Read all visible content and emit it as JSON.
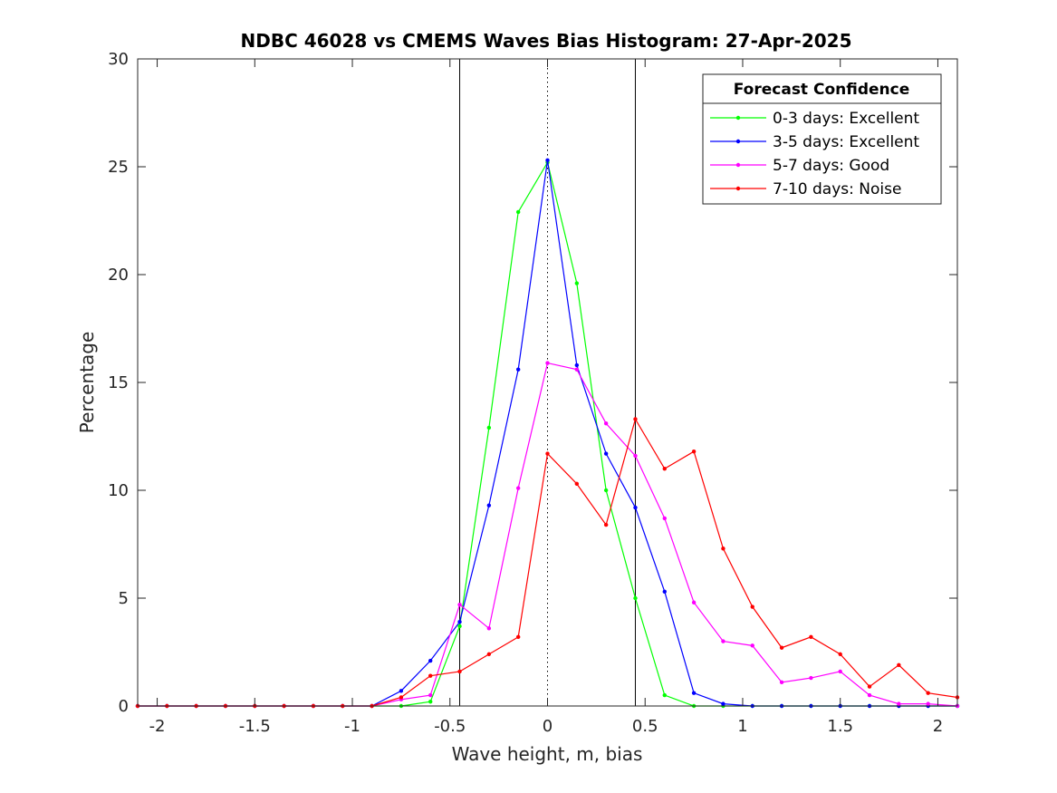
{
  "chart_data": {
    "type": "line",
    "title": "NDBC 46028 vs CMEMS Waves Bias Histogram: 27-Apr-2025",
    "xlabel": "Wave height, m, bias",
    "ylabel": "Percentage",
    "xlim": [
      -2.1,
      2.1
    ],
    "ylim": [
      0,
      30
    ],
    "xticks": [
      -2,
      -1.5,
      -1,
      -0.5,
      0,
      0.5,
      1,
      1.5,
      2
    ],
    "xtick_labels": [
      "-2",
      "-1.5",
      "-1",
      "-0.5",
      "0",
      "0.5",
      "1",
      "1.5",
      "2"
    ],
    "yticks": [
      0,
      5,
      10,
      15,
      20,
      25,
      30
    ],
    "ytick_labels": [
      "0",
      "5",
      "10",
      "15",
      "20",
      "25",
      "30"
    ],
    "grid": false,
    "legend": {
      "title": "Forecast Confidence",
      "placement": "top-right"
    },
    "vertical_lines": [
      {
        "x": -0.45,
        "style": "solid"
      },
      {
        "x": 0,
        "style": "dotted"
      },
      {
        "x": 0.45,
        "style": "solid"
      }
    ],
    "x": [
      -2.1,
      -1.95,
      -1.8,
      -1.65,
      -1.5,
      -1.35,
      -1.2,
      -1.05,
      -0.9,
      -0.75,
      -0.6,
      -0.45,
      -0.3,
      -0.15,
      0,
      0.15,
      0.3,
      0.45,
      0.6,
      0.75,
      0.9,
      1.05,
      1.2,
      1.35,
      1.5,
      1.65,
      1.8,
      1.95,
      2.1
    ],
    "series": [
      {
        "name": "0-3 days: Excellent",
        "color": "#00ff00",
        "values": [
          0,
          0,
          0,
          0,
          0,
          0,
          0,
          0,
          0,
          0,
          0.2,
          3.7,
          12.9,
          22.9,
          25.2,
          19.6,
          10.0,
          5.0,
          0.5,
          0,
          0,
          0,
          0,
          0,
          0,
          0,
          0,
          0,
          0
        ]
      },
      {
        "name": "3-5 days: Excellent",
        "color": "#0000ff",
        "values": [
          0,
          0,
          0,
          0,
          0,
          0,
          0,
          0,
          0,
          0.7,
          2.1,
          3.9,
          9.3,
          15.6,
          25.3,
          15.8,
          11.7,
          9.2,
          5.3,
          0.6,
          0.1,
          0,
          0,
          0,
          0,
          0,
          0,
          0,
          0
        ]
      },
      {
        "name": "5-7 days: Good",
        "color": "#ff00ff",
        "values": [
          0,
          0,
          0,
          0,
          0,
          0,
          0,
          0,
          0,
          0.3,
          0.5,
          4.7,
          3.6,
          10.1,
          15.9,
          15.6,
          13.1,
          11.6,
          8.7,
          4.8,
          3.0,
          2.8,
          1.1,
          1.3,
          1.6,
          0.5,
          0.1,
          0.1,
          0
        ]
      },
      {
        "name": "7-10 days: Noise",
        "color": "#ff0000",
        "values": [
          0,
          0,
          0,
          0,
          0,
          0,
          0,
          0,
          0,
          0.4,
          1.4,
          1.6,
          2.4,
          3.2,
          11.7,
          10.3,
          8.4,
          13.3,
          11.0,
          11.8,
          7.3,
          4.6,
          2.7,
          3.2,
          2.4,
          0.9,
          1.9,
          0.6,
          0.4
        ]
      }
    ]
  }
}
